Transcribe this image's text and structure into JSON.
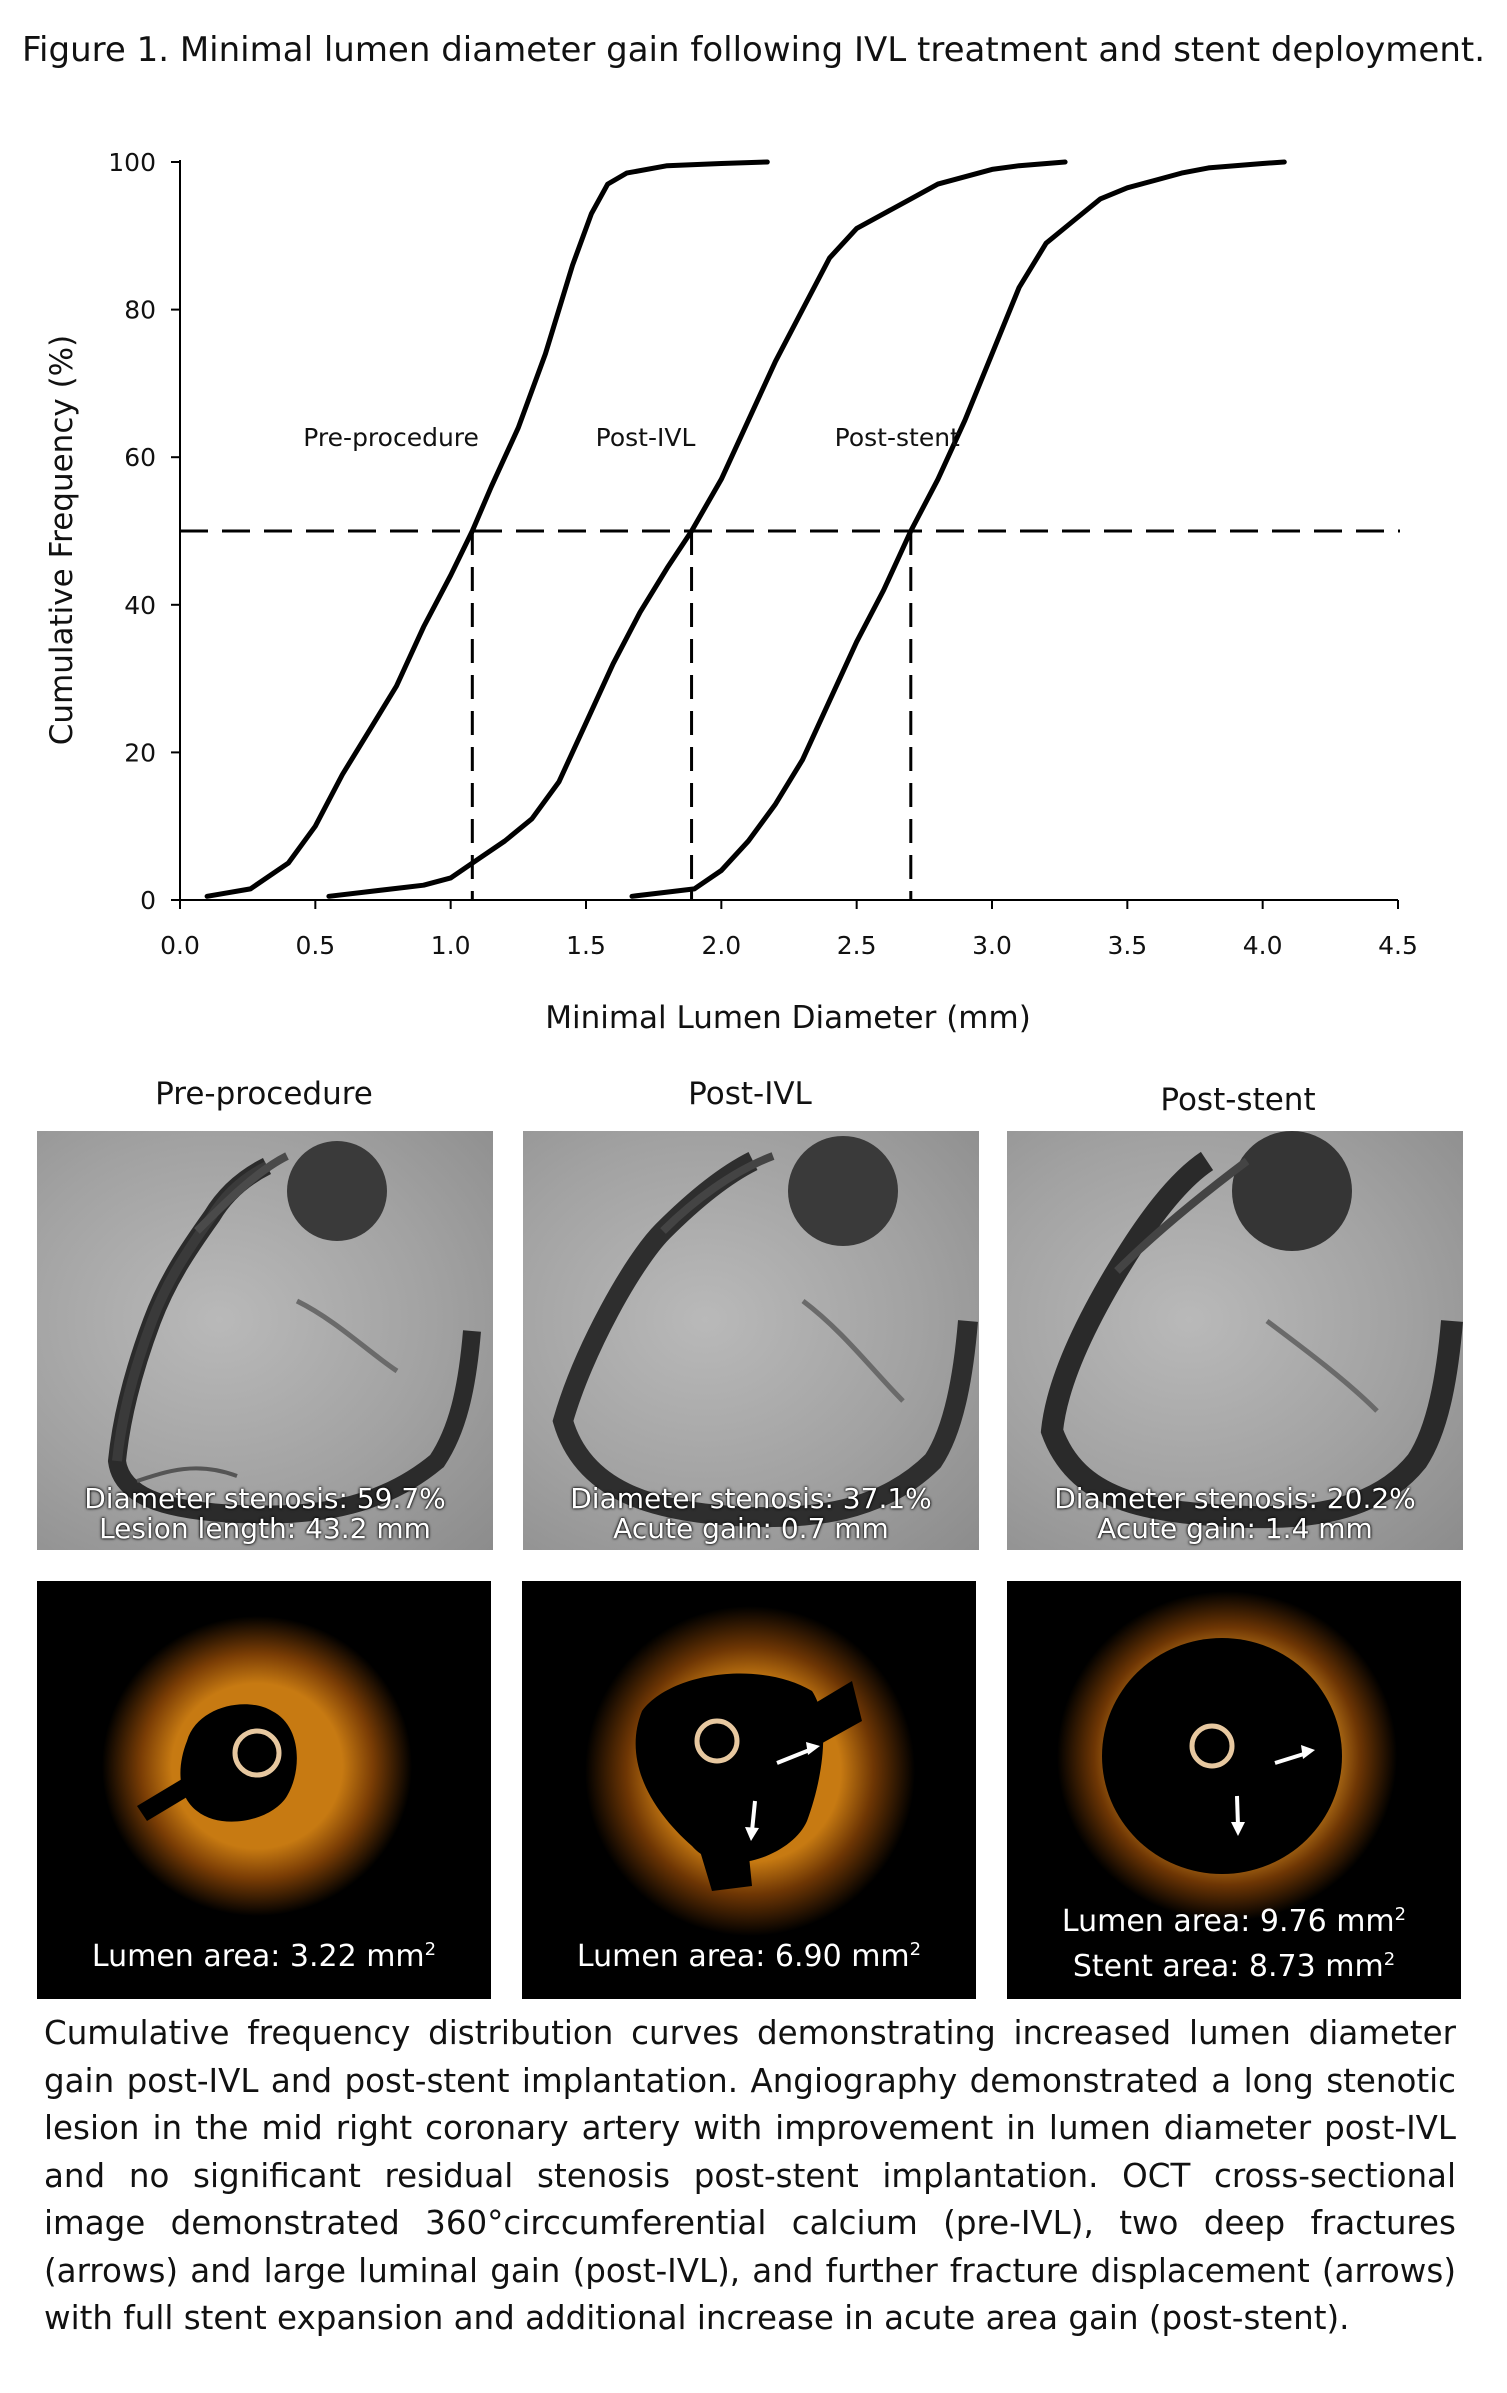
{
  "figure_title": "Figure 1. Minimal lumen diameter gain following IVL treatment and stent deployment.",
  "chart_data": {
    "type": "line",
    "xlabel": "Minimal Lumen Diameter (mm)",
    "ylabel": "Cumulative Frequency (%)",
    "xlim": [
      0,
      4.5
    ],
    "ylim": [
      0,
      100
    ],
    "xticks": [
      "0.0",
      "0.5",
      "1.0",
      "1.5",
      "2.0",
      "2.5",
      "3.0",
      "3.5",
      "4.0",
      "4.5"
    ],
    "yticks": [
      "0",
      "20",
      "40",
      "60",
      "80",
      "100"
    ],
    "reference_line_y": 50,
    "medians": [
      1.08,
      1.89,
      2.7
    ],
    "grid": false,
    "series": [
      {
        "name": "Pre-procedure",
        "x": [
          0.1,
          0.26,
          0.4,
          0.5,
          0.6,
          0.7,
          0.8,
          0.9,
          1.0,
          1.08,
          1.15,
          1.25,
          1.35,
          1.45,
          1.52,
          1.58,
          1.65,
          1.8,
          2.0,
          2.17
        ],
        "y": [
          0.5,
          1.5,
          5,
          10,
          17,
          23,
          29,
          37,
          44,
          50,
          56,
          64,
          74,
          86,
          93,
          97,
          98.5,
          99.5,
          99.8,
          100
        ]
      },
      {
        "name": "Post-IVL",
        "x": [
          0.55,
          0.9,
          1.0,
          1.1,
          1.2,
          1.3,
          1.4,
          1.5,
          1.6,
          1.7,
          1.8,
          1.89,
          2.0,
          2.1,
          2.2,
          2.3,
          2.4,
          2.5,
          2.6,
          2.7,
          2.8,
          3.0,
          3.1,
          3.27
        ],
        "y": [
          0.5,
          2,
          3,
          5.5,
          8,
          11,
          16,
          24,
          32,
          39,
          45,
          50,
          57,
          65,
          73,
          80,
          87,
          91,
          93,
          95,
          97,
          99,
          99.5,
          100
        ]
      },
      {
        "name": "Post-stent",
        "x": [
          1.67,
          1.9,
          2.0,
          2.1,
          2.2,
          2.3,
          2.4,
          2.5,
          2.6,
          2.7,
          2.8,
          2.9,
          3.0,
          3.1,
          3.2,
          3.3,
          3.4,
          3.5,
          3.6,
          3.7,
          3.8,
          4.0,
          4.08
        ],
        "y": [
          0.5,
          1.5,
          4,
          8,
          13,
          19,
          27,
          35,
          42,
          50,
          57,
          65,
          74,
          83,
          89,
          92,
          95,
          96.5,
          97.5,
          98.5,
          99.2,
          99.8,
          100
        ]
      }
    ]
  },
  "panels": {
    "labels": [
      "Pre-procedure",
      "Post-IVL",
      "Post-stent"
    ],
    "angiography": [
      {
        "line1": "Diameter stenosis: 59.7%",
        "line2": "Lesion length: 43.2 mm"
      },
      {
        "line1": "Diameter stenosis: 37.1%",
        "line2": "Acute gain: 0.7 mm"
      },
      {
        "line1": "Diameter stenosis: 20.2%",
        "line2": "Acute gain: 1.4 mm"
      }
    ],
    "oct": [
      {
        "line1": "Lumen area: 3.22 mm",
        "line2": "",
        "unit_sup": "2"
      },
      {
        "line1": "Lumen area: 6.90 mm",
        "line2": "",
        "unit_sup": "2"
      },
      {
        "line1": "Lumen area: 9.76 mm",
        "line2": "Stent area: 8.73 mm",
        "unit_sup": "2"
      }
    ]
  },
  "caption": "Cumulative frequency distribution curves demonstrating increased lumen diameter gain post-IVL and post-stent implantation. Angiography demonstrated a long stenotic lesion in the mid right coronary artery with improvement in lumen diameter post-IVL and no significant residual stenosis post-stent implantation. OCT cross-sectional image demonstrated 360°circcumferential calcium (pre-IVL), two deep fractures (arrows) and large luminal gain (post-IVL), and further fracture displacement (arrows) with full stent expansion and additional increase in acute area gain (post-stent)."
}
